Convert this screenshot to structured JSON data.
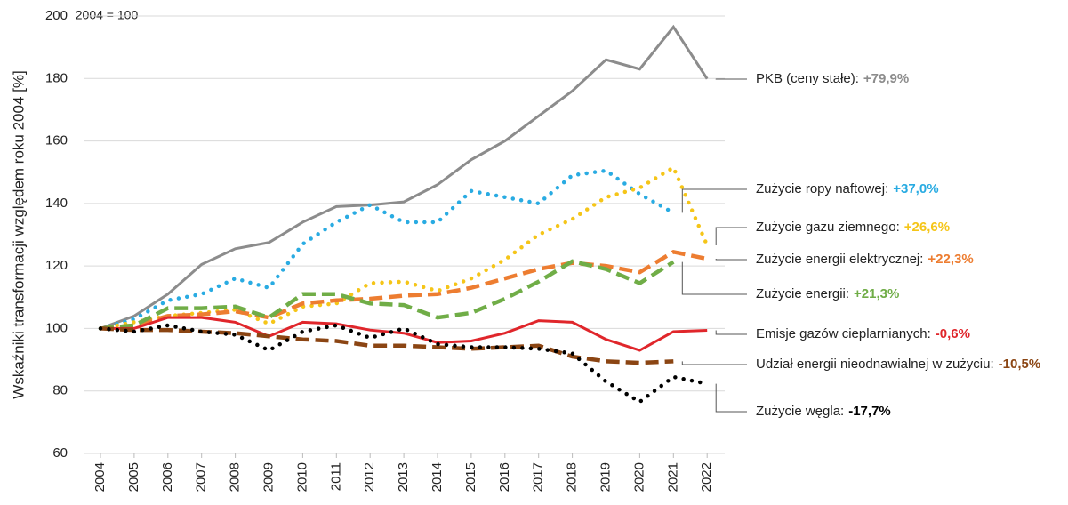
{
  "chart_data": {
    "type": "line",
    "annotation": "2004 = 100",
    "y_label": "Wskaźniki transformacji względem roku 2004 [%]",
    "categories": [
      "2004",
      "2005",
      "2006",
      "2007",
      "2008",
      "2009",
      "2010",
      "2011",
      "2012",
      "2013",
      "2014",
      "2015",
      "2016",
      "2017",
      "2018",
      "2019",
      "2020",
      "2021",
      "2022"
    ],
    "ylim": [
      60,
      200
    ],
    "yticks": [
      60,
      80,
      100,
      120,
      140,
      160,
      180,
      200
    ],
    "grid": true,
    "series": [
      {
        "name": "PKB (ceny stałe):",
        "end_label": "+79,9%",
        "color": "#8c8c8c",
        "style": "solid",
        "values": [
          100,
          104,
          111,
          120.5,
          125.5,
          127.5,
          134,
          139,
          139.5,
          140.5,
          146,
          154,
          160,
          168,
          176,
          186,
          183,
          196.5,
          179.9
        ]
      },
      {
        "name": "Zużycie ropy naftowej:",
        "end_label": "+37,0%",
        "color": "#29abe2",
        "style": "dotted",
        "values": [
          100,
          103,
          109,
          111,
          116,
          113,
          127,
          134,
          139.5,
          134,
          134,
          144,
          142,
          140,
          149,
          150.5,
          143,
          137,
          null
        ]
      },
      {
        "name": "Zużycie gazu ziemnego:",
        "end_label": "+26,6%",
        "color": "#f5c518",
        "style": "dotted",
        "values": [
          100,
          102,
          104,
          105,
          106,
          101.5,
          107,
          108,
          114.5,
          115,
          112,
          116,
          122,
          130,
          135,
          142,
          145,
          151.5,
          126.6
        ]
      },
      {
        "name": "Zużycie energii elektrycznej:",
        "end_label": "+22,3%",
        "color": "#ed7d31",
        "style": "dashed",
        "values": [
          100,
          101,
          104,
          104.5,
          105.5,
          103.5,
          108,
          109,
          109.5,
          110.5,
          111,
          113,
          116,
          119,
          121,
          120,
          118,
          124.5,
          122.3
        ]
      },
      {
        "name": "Zużycie energii:",
        "end_label": "+21,3%",
        "color": "#70ad47",
        "style": "dashed",
        "values": [
          100,
          101,
          106.5,
          106.5,
          107,
          103.5,
          111,
          111,
          108,
          107.5,
          103.5,
          105,
          109.5,
          115,
          121.5,
          119,
          114.5,
          121.3,
          null
        ]
      },
      {
        "name": "Emisje gazów cieplarnianych:",
        "end_label": "-0,6%",
        "color": "#e0262b",
        "style": "solid",
        "values": [
          100,
          100,
          103.5,
          103.5,
          102,
          97.5,
          102,
          101.5,
          99.5,
          98.5,
          95.5,
          96,
          98.5,
          102.5,
          102,
          96.5,
          93,
          99,
          99.4
        ]
      },
      {
        "name": "Udział energii nieodnawialnej w zużyciu:",
        "end_label": "-10,5%",
        "color": "#8b4513",
        "style": "dashed",
        "values": [
          100,
          99.5,
          99.5,
          99,
          98.5,
          97.5,
          96.5,
          96,
          94.5,
          94.5,
          94,
          93.5,
          94,
          94.5,
          91,
          89.5,
          89,
          89.5,
          null
        ]
      },
      {
        "name": "Zużycie węgla:",
        "end_label": "-17,7%",
        "color": "#000000",
        "style": "dotted",
        "values": [
          100,
          99,
          101,
          99,
          98,
          93,
          99,
          101,
          97,
          100,
          95,
          94,
          94,
          93.5,
          92,
          83,
          76.5,
          84.5,
          82.3
        ]
      }
    ]
  }
}
